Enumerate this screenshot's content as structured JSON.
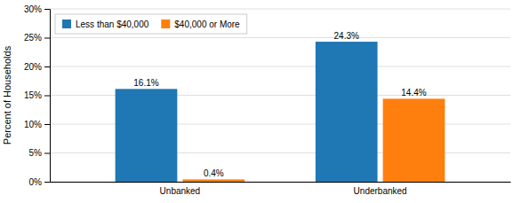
{
  "chart_data": {
    "type": "bar",
    "categories": [
      "Unbanked",
      "Underbanked"
    ],
    "series": [
      {
        "name": "Less than $40,000",
        "values": [
          16.1,
          24.3
        ],
        "value_labels": [
          "16.1%",
          "24.3%"
        ]
      },
      {
        "name": "$40,000 or More",
        "values": [
          0.4,
          14.4
        ],
        "value_labels": [
          "0.4%",
          "14.4%"
        ]
      }
    ],
    "y_label": "Percent of Households",
    "ylim": [
      0,
      30
    ],
    "yticks": [
      {
        "value": 0,
        "label": "0%"
      },
      {
        "value": 5,
        "label": "5%"
      },
      {
        "value": 10,
        "label": "10%"
      },
      {
        "value": 15,
        "label": "15%"
      },
      {
        "value": 20,
        "label": "20%"
      },
      {
        "value": 25,
        "label": "25%"
      },
      {
        "value": 30,
        "label": "30%"
      }
    ],
    "grid": true,
    "legend": "upper left",
    "data_labels": true
  }
}
